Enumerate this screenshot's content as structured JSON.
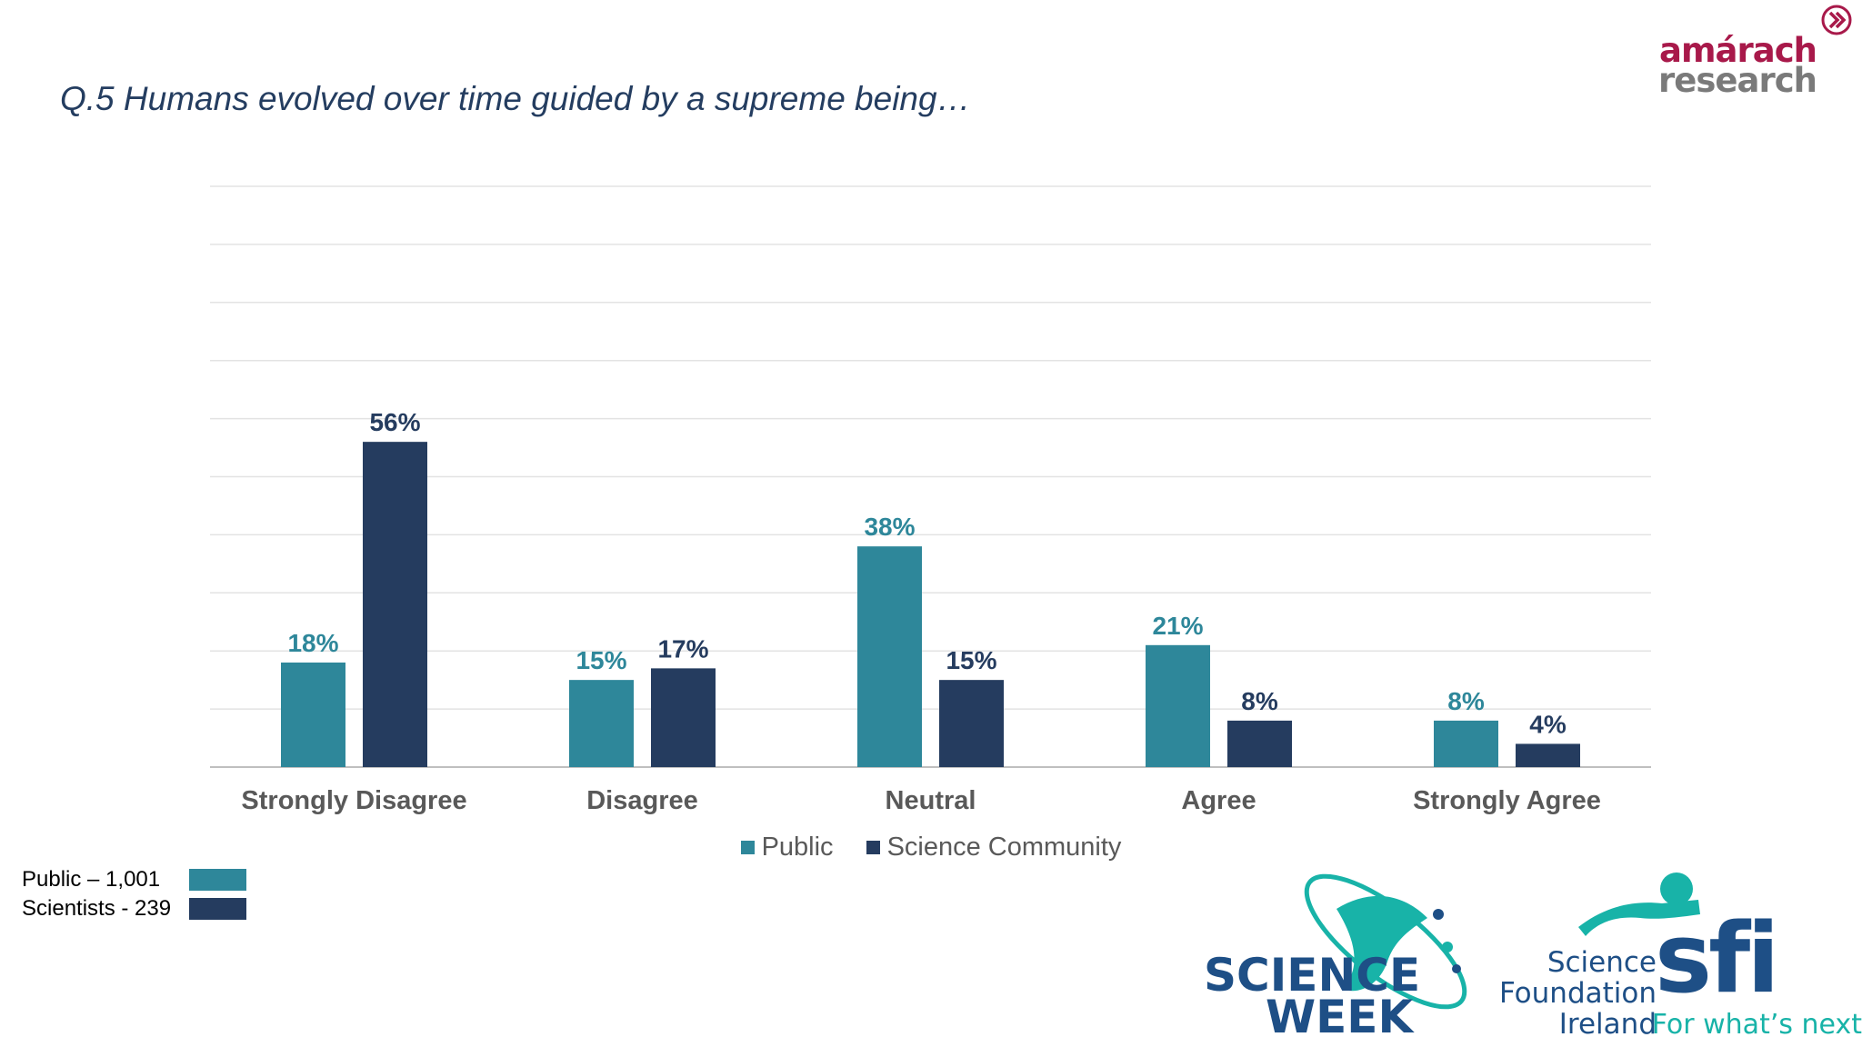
{
  "slide": {
    "title": "Q.5 Humans evolved over time guided by a supreme being…"
  },
  "chart_data": {
    "type": "bar",
    "categories": [
      "Strongly Disagree",
      "Disagree",
      "Neutral",
      "Agree",
      "Strongly Agree"
    ],
    "series": [
      {
        "name": "Public",
        "values": [
          18,
          15,
          38,
          21,
          8
        ],
        "labels": [
          "18%",
          "15%",
          "38%",
          "21%",
          "8%"
        ],
        "color": "#2e879a"
      },
      {
        "name": "Science Community",
        "values": [
          56,
          17,
          15,
          8,
          4
        ],
        "labels": [
          "56%",
          "17%",
          "15%",
          "8%",
          "4%"
        ],
        "color": "#253c5f"
      }
    ],
    "ylim": [
      0,
      100
    ],
    "grid": true,
    "legend": "bottom-center"
  },
  "sample_sizes": [
    {
      "label": "Public – 1,001",
      "color": "#2e879a"
    },
    {
      "label": "Scientists - 239",
      "color": "#253c5f"
    }
  ],
  "logos": {
    "amarach": {
      "top": "amárach",
      "bottom": "research"
    },
    "science_week": {
      "line1": "SCIENCE",
      "line2": "WEEK"
    },
    "sfi": {
      "line1": "Science",
      "line2": "Foundation",
      "line3": "Ireland",
      "mark": "sfi",
      "tagline": "For what’s next"
    }
  },
  "colors": {
    "public": "#2e879a",
    "science_community": "#253c5f",
    "title": "#243d60",
    "brand_teal": "#18b3a8",
    "brand_blue": "#1e4f86",
    "amarach_red": "#a8194a"
  }
}
